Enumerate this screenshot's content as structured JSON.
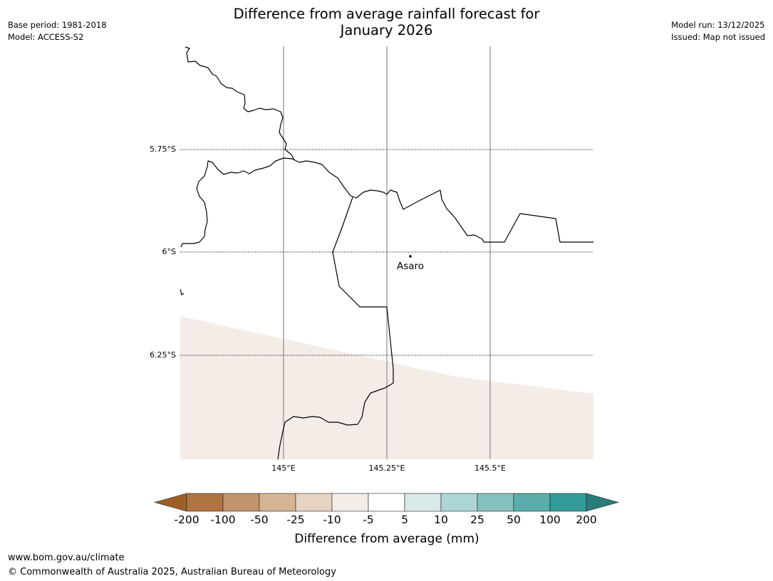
{
  "header": {
    "title_line1": "Difference from average rainfall forecast for",
    "title_line2": "January 2026",
    "base_period": "Base period: 1981-2018",
    "model": "Model: ACCESS-S2",
    "model_run": "Model run: 13/12/2025",
    "issued": "Issued: Map not issued"
  },
  "map": {
    "latitude_labels": [
      "5.75°S",
      "6°S",
      "6.25°S"
    ],
    "longitude_labels": [
      "145°E",
      "145.25°E",
      "145.5°E"
    ],
    "place": {
      "name": "Asaro"
    },
    "shaded_category": "-10 to -5"
  },
  "legend": {
    "title": "Difference from average (mm)",
    "tick_labels": [
      "-200",
      "-100",
      "-50",
      "-25",
      "-10",
      "-5",
      "5",
      "10",
      "25",
      "50",
      "100",
      "200"
    ],
    "colors": [
      "#9c5f27",
      "#b07440",
      "#c3946b",
      "#d5b393",
      "#e6d3c2",
      "#f4ede7",
      "#ffffff",
      "#d8e9ea",
      "#acd6d6",
      "#84c2bf",
      "#5aadaa",
      "#329a98",
      "#297c79"
    ]
  },
  "footer": {
    "url": "www.bom.gov.au/climate",
    "copyright": "© Commonwealth of Australia 2025, Australian Bureau of Meteorology"
  }
}
